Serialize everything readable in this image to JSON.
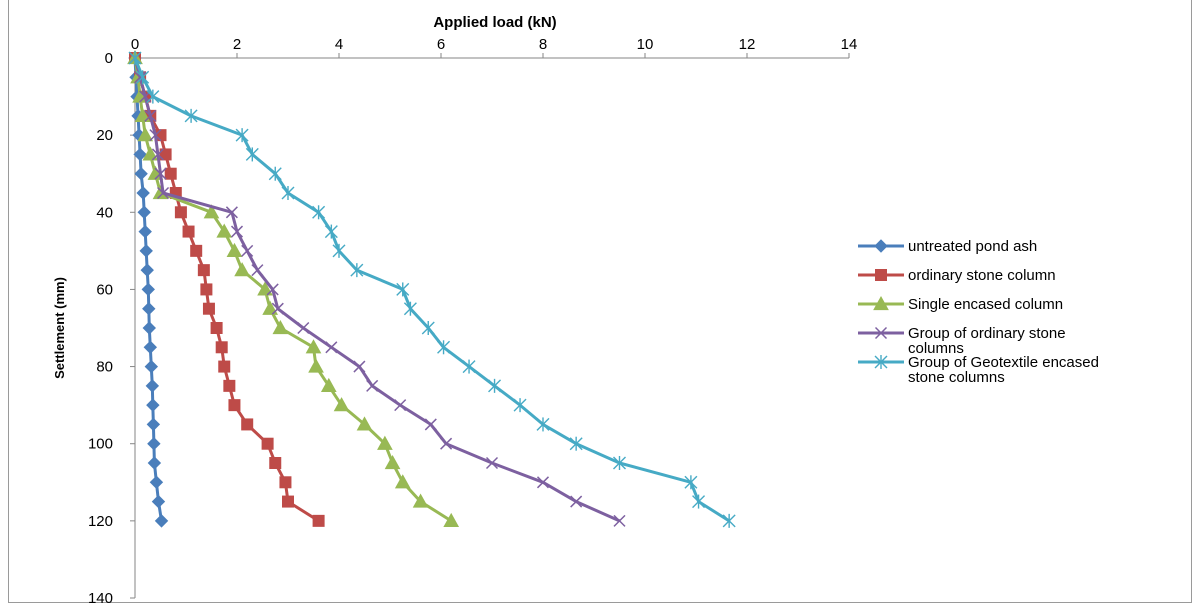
{
  "chart_data": {
    "type": "line",
    "title": "",
    "xlabel": "Applied load (kN)",
    "ylabel": "Settlement (mm)",
    "xlim": [
      0,
      14
    ],
    "ylim": [
      0,
      140
    ],
    "x_ticks": [
      0,
      2,
      4,
      6,
      8,
      10,
      12,
      14
    ],
    "y_ticks": [
      0,
      20,
      40,
      60,
      80,
      100,
      120,
      140
    ],
    "y_inverted": true,
    "x_axis_position": "top",
    "grid": false,
    "legend_position": "right",
    "series": [
      {
        "name": "untreated pond ash",
        "color": "#4a7ebb",
        "marker": "diamond",
        "points": [
          [
            0,
            0
          ],
          [
            0.02,
            5
          ],
          [
            0.04,
            10
          ],
          [
            0.06,
            15
          ],
          [
            0.08,
            20
          ],
          [
            0.1,
            25
          ],
          [
            0.12,
            30
          ],
          [
            0.16,
            35
          ],
          [
            0.18,
            40
          ],
          [
            0.2,
            45
          ],
          [
            0.22,
            50
          ],
          [
            0.24,
            55
          ],
          [
            0.26,
            60
          ],
          [
            0.27,
            65
          ],
          [
            0.28,
            70
          ],
          [
            0.3,
            75
          ],
          [
            0.32,
            80
          ],
          [
            0.34,
            85
          ],
          [
            0.35,
            90
          ],
          [
            0.36,
            95
          ],
          [
            0.37,
            100
          ],
          [
            0.38,
            105
          ],
          [
            0.42,
            110
          ],
          [
            0.46,
            115
          ],
          [
            0.52,
            120
          ]
        ]
      },
      {
        "name": "ordinary stone column",
        "color": "#be4b48",
        "marker": "square",
        "points": [
          [
            0,
            0
          ],
          [
            0.1,
            5
          ],
          [
            0.2,
            10
          ],
          [
            0.3,
            15
          ],
          [
            0.5,
            20
          ],
          [
            0.6,
            25
          ],
          [
            0.7,
            30
          ],
          [
            0.8,
            35
          ],
          [
            0.9,
            40
          ],
          [
            1.05,
            45
          ],
          [
            1.2,
            50
          ],
          [
            1.35,
            55
          ],
          [
            1.4,
            60
          ],
          [
            1.45,
            65
          ],
          [
            1.6,
            70
          ],
          [
            1.7,
            75
          ],
          [
            1.75,
            80
          ],
          [
            1.85,
            85
          ],
          [
            1.95,
            90
          ],
          [
            2.2,
            95
          ],
          [
            2.6,
            100
          ],
          [
            2.75,
            105
          ],
          [
            2.95,
            110
          ],
          [
            3.0,
            115
          ],
          [
            3.6,
            120
          ]
        ]
      },
      {
        "name": "Single encased column",
        "color": "#98b954",
        "marker": "triangle",
        "points": [
          [
            0,
            0
          ],
          [
            0.06,
            5
          ],
          [
            0.1,
            10
          ],
          [
            0.15,
            15
          ],
          [
            0.2,
            20
          ],
          [
            0.3,
            25
          ],
          [
            0.4,
            30
          ],
          [
            0.5,
            35
          ],
          [
            1.5,
            40
          ],
          [
            1.75,
            45
          ],
          [
            1.95,
            50
          ],
          [
            2.1,
            55
          ],
          [
            2.55,
            60
          ],
          [
            2.65,
            65
          ],
          [
            2.85,
            70
          ],
          [
            3.5,
            75
          ],
          [
            3.55,
            80
          ],
          [
            3.8,
            85
          ],
          [
            4.05,
            90
          ],
          [
            4.5,
            95
          ],
          [
            4.9,
            100
          ],
          [
            5.05,
            105
          ],
          [
            5.25,
            110
          ],
          [
            5.6,
            115
          ],
          [
            6.2,
            120
          ]
        ]
      },
      {
        "name": "Group of ordinary stone columns",
        "color": "#7d60a0",
        "marker": "x",
        "points": [
          [
            0,
            0
          ],
          [
            0.1,
            5
          ],
          [
            0.2,
            10
          ],
          [
            0.3,
            15
          ],
          [
            0.4,
            20
          ],
          [
            0.45,
            25
          ],
          [
            0.5,
            30
          ],
          [
            0.55,
            35
          ],
          [
            1.9,
            40
          ],
          [
            2.0,
            45
          ],
          [
            2.2,
            50
          ],
          [
            2.4,
            55
          ],
          [
            2.7,
            60
          ],
          [
            2.8,
            65
          ],
          [
            3.3,
            70
          ],
          [
            3.85,
            75
          ],
          [
            4.4,
            80
          ],
          [
            4.65,
            85
          ],
          [
            5.2,
            90
          ],
          [
            5.8,
            95
          ],
          [
            6.1,
            100
          ],
          [
            7.0,
            105
          ],
          [
            8.0,
            110
          ],
          [
            8.65,
            115
          ],
          [
            9.5,
            120
          ]
        ]
      },
      {
        "name": "Group of Geotextile encased stone columns",
        "color": "#46aac5",
        "marker": "star",
        "points": [
          [
            0,
            0
          ],
          [
            0.15,
            5
          ],
          [
            0.35,
            10
          ],
          [
            1.1,
            15
          ],
          [
            2.1,
            20
          ],
          [
            2.3,
            25
          ],
          [
            2.75,
            30
          ],
          [
            3.0,
            35
          ],
          [
            3.6,
            40
          ],
          [
            3.85,
            45
          ],
          [
            4.0,
            50
          ],
          [
            4.35,
            55
          ],
          [
            5.25,
            60
          ],
          [
            5.4,
            65
          ],
          [
            5.75,
            70
          ],
          [
            6.05,
            75
          ],
          [
            6.55,
            80
          ],
          [
            7.05,
            85
          ],
          [
            7.55,
            90
          ],
          [
            8.0,
            95
          ],
          [
            8.65,
            100
          ],
          [
            9.5,
            105
          ],
          [
            10.9,
            110
          ],
          [
            11.05,
            115
          ],
          [
            11.65,
            120
          ]
        ]
      }
    ]
  }
}
